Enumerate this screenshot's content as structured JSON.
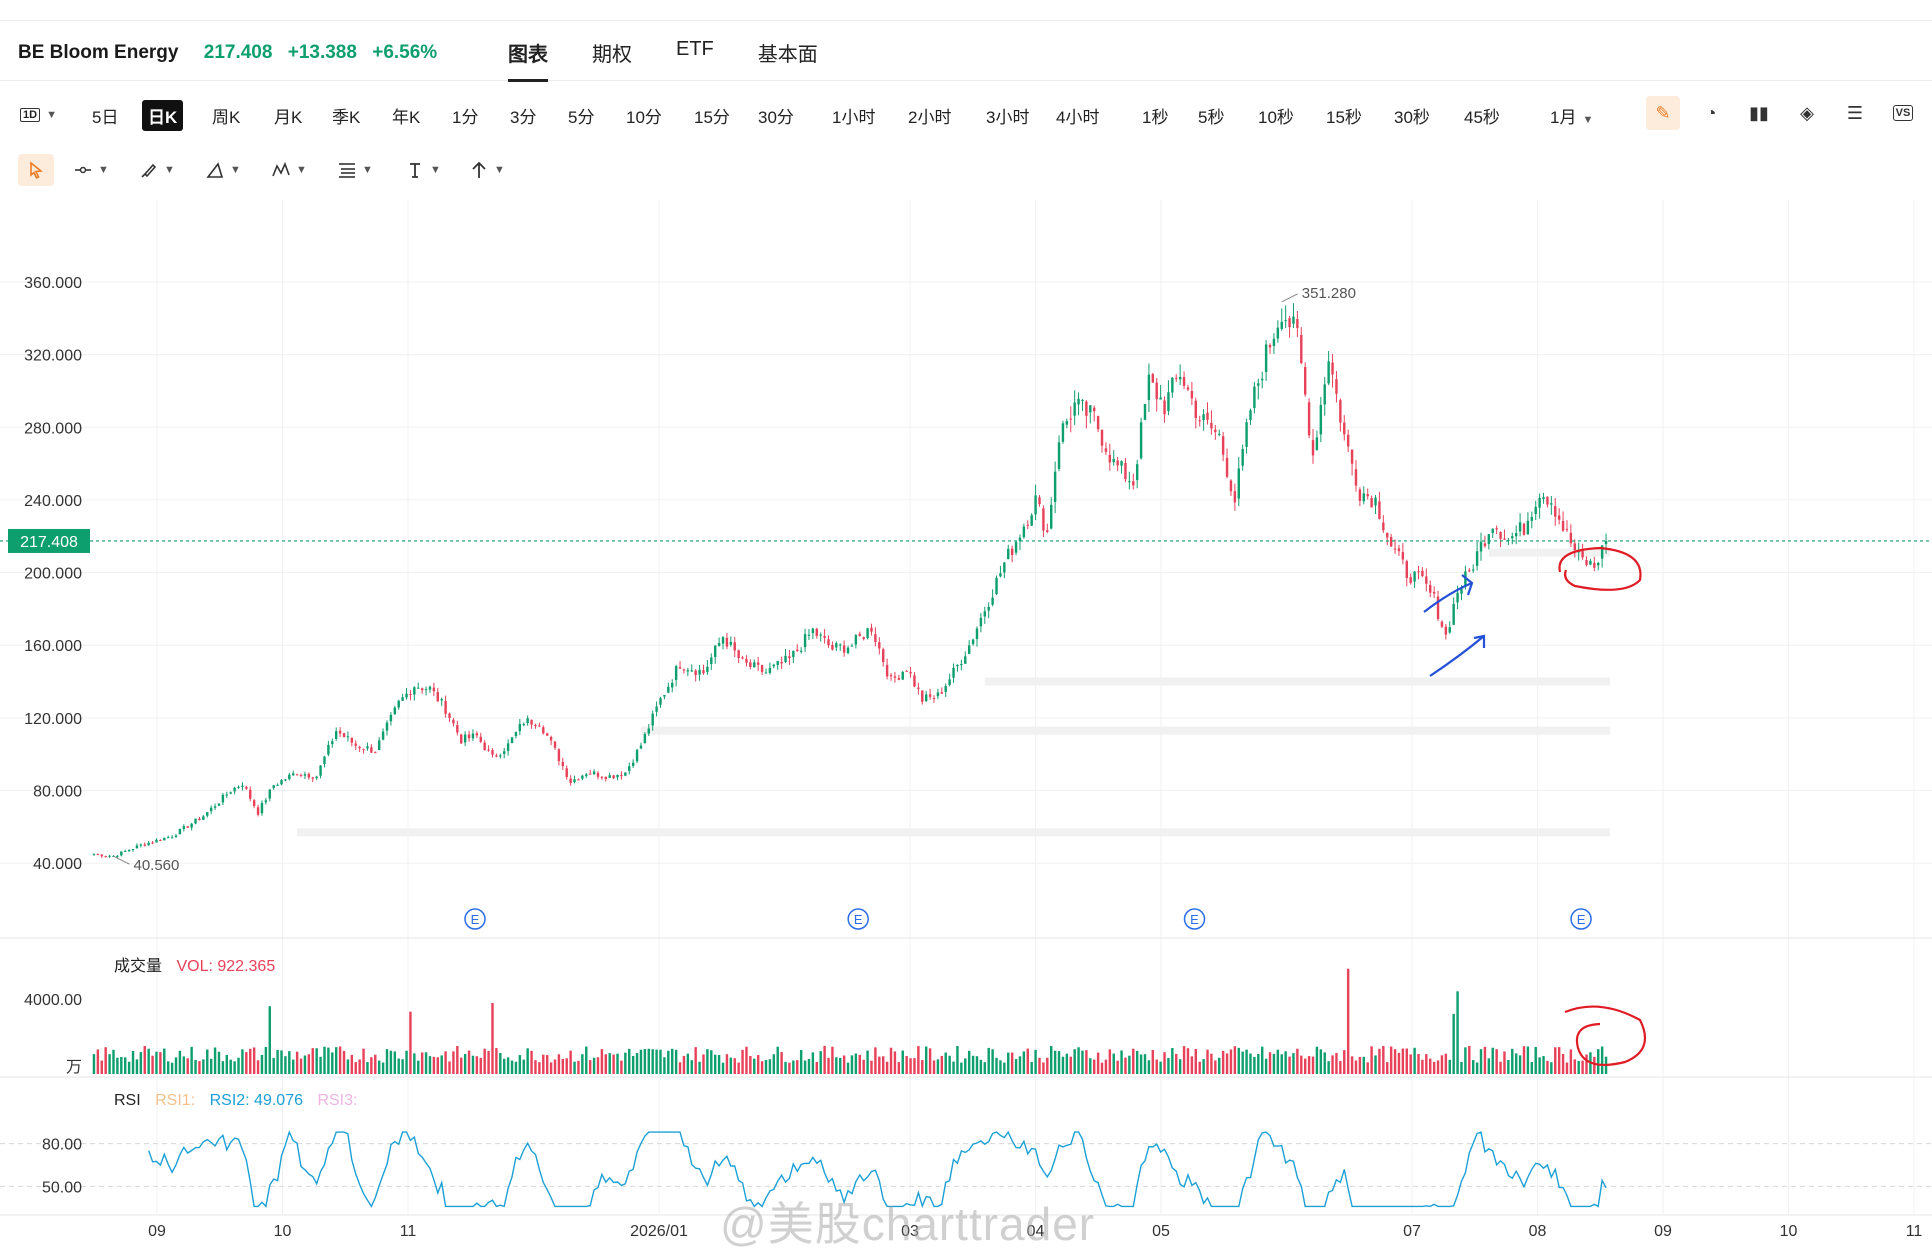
{
  "header": {
    "symbol_name": "BE Bloom Energy",
    "price": "217.408",
    "change": "+13.388",
    "change_pct": "+6.56%",
    "tabs": [
      "图表",
      "期权",
      "ETF",
      "基本面"
    ],
    "active_tab": "图表"
  },
  "periods": {
    "layout_icon": "1D",
    "items": [
      "5日",
      "日K",
      "周K",
      "月K",
      "季K",
      "年K",
      "1分",
      "3分",
      "5分",
      "10分",
      "15分",
      "30分",
      "1小时",
      "2小时",
      "3小时",
      "4小时",
      "1秒",
      "5秒",
      "10秒",
      "15秒",
      "30秒",
      "45秒",
      "1月"
    ],
    "active": "日K"
  },
  "right_icons": [
    "pen-icon",
    "gauge-icon",
    "candles-icon",
    "layers-icon",
    "list-icon",
    "vs-icon"
  ],
  "right_icon_vs_label": "VS",
  "drawing_tools": [
    "cursor-icon",
    "line-tool-icon",
    "brush-tool-icon",
    "shape-tool-icon",
    "pattern-tool-icon",
    "fib-tool-icon",
    "text-tool-icon",
    "arrow-tool-icon"
  ],
  "colors": {
    "up": "#0e9f6e",
    "down": "#e8415a",
    "accent": "#ef7d24",
    "rsi2": "#1ba0d6",
    "grid": "#f0f0f0"
  },
  "chart_data": {
    "type": "candlestick",
    "symbol": "BE",
    "interval": "日K",
    "current_price": 217.408,
    "current_price_label": "217.408",
    "y_ticks": [
      "360.000",
      "320.000",
      "280.000",
      "240.000",
      "200.000",
      "160.000",
      "120.000",
      "80.000",
      "40.000"
    ],
    "y_tick_values": [
      360,
      320,
      280,
      240,
      200,
      160,
      120,
      80,
      40
    ],
    "ylim": [
      28,
      382
    ],
    "x_ticks": [
      "09",
      "10",
      "11",
      "2026/01",
      "03",
      "04",
      "05",
      "07",
      "08",
      "09",
      "10",
      "11"
    ],
    "x_tick_month_index": [
      0,
      1,
      2,
      4,
      6,
      7,
      8,
      10,
      11,
      12,
      13,
      14
    ],
    "high_label": "351.280",
    "high_value": 351.28,
    "low_label": "40.560",
    "low_value": 40.56,
    "earnings_marker": "E",
    "earnings_month_index": [
      2,
      5,
      8,
      11
    ],
    "anchors": [
      [
        0,
        45
      ],
      [
        5,
        44
      ],
      [
        12,
        50
      ],
      [
        20,
        55
      ],
      [
        28,
        66
      ],
      [
        35,
        80
      ],
      [
        38,
        84
      ],
      [
        42,
        68
      ],
      [
        46,
        83
      ],
      [
        52,
        90
      ],
      [
        57,
        88
      ],
      [
        62,
        113
      ],
      [
        67,
        105
      ],
      [
        72,
        102
      ],
      [
        78,
        128
      ],
      [
        82,
        138
      ],
      [
        86,
        136
      ],
      [
        90,
        125
      ],
      [
        94,
        108
      ],
      [
        98,
        110
      ],
      [
        102,
        98
      ],
      [
        106,
        105
      ],
      [
        110,
        118
      ],
      [
        114,
        118
      ],
      [
        118,
        102
      ],
      [
        122,
        85
      ],
      [
        126,
        90
      ],
      [
        132,
        88
      ],
      [
        136,
        90
      ],
      [
        140,
        105
      ],
      [
        145,
        130
      ],
      [
        150,
        150
      ],
      [
        156,
        145
      ],
      [
        161,
        165
      ],
      [
        166,
        150
      ],
      [
        172,
        145
      ],
      [
        178,
        152
      ],
      [
        184,
        168
      ],
      [
        189,
        158
      ],
      [
        194,
        160
      ],
      [
        199,
        170
      ],
      [
        204,
        140
      ],
      [
        208,
        148
      ],
      [
        212,
        130
      ],
      [
        216,
        132
      ],
      [
        220,
        145
      ],
      [
        224,
        160
      ],
      [
        228,
        180
      ],
      [
        233,
        205
      ],
      [
        237,
        222
      ],
      [
        241,
        240
      ],
      [
        244,
        222
      ],
      [
        247,
        275
      ],
      [
        251,
        292
      ],
      [
        256,
        285
      ],
      [
        261,
        260
      ],
      [
        266,
        250
      ],
      [
        270,
        305
      ],
      [
        274,
        292
      ],
      [
        278,
        310
      ],
      [
        283,
        285
      ],
      [
        288,
        275
      ],
      [
        292,
        240
      ],
      [
        296,
        290
      ],
      [
        300,
        320
      ],
      [
        304,
        345
      ],
      [
        308,
        330
      ],
      [
        312,
        265
      ],
      [
        316,
        320
      ],
      [
        320,
        275
      ],
      [
        324,
        245
      ],
      [
        328,
        240
      ],
      [
        332,
        215
      ],
      [
        336,
        200
      ],
      [
        340,
        195
      ],
      [
        343,
        185
      ],
      [
        346,
        165
      ],
      [
        349,
        190
      ],
      [
        352,
        200
      ],
      [
        355,
        215
      ],
      [
        358,
        228
      ],
      [
        362,
        218
      ],
      [
        366,
        225
      ],
      [
        370,
        245
      ],
      [
        373,
        240
      ],
      [
        376,
        225
      ],
      [
        380,
        208
      ],
      [
        384,
        203
      ],
      [
        387,
        217
      ]
    ],
    "bar_count": 388,
    "volume": {
      "label": "成交量",
      "indicator": "VOL: 922.365",
      "value": 922.365,
      "y_ticks": [
        "4000.00",
        "万"
      ],
      "y_tick_values": [
        4000,
        0
      ],
      "ylim": [
        0,
        5800
      ]
    },
    "rsi": {
      "label": "RSI",
      "series": [
        {
          "name": "RSI1:",
          "value": null
        },
        {
          "name": "RSI2: 49.076",
          "value": 49.076
        },
        {
          "name": "RSI3:",
          "value": null
        }
      ],
      "y_ticks": [
        "80.00",
        "50.00"
      ],
      "y_tick_values": [
        80,
        50
      ],
      "ylim": [
        30,
        100
      ]
    }
  },
  "watermark": "@美股charttrader"
}
